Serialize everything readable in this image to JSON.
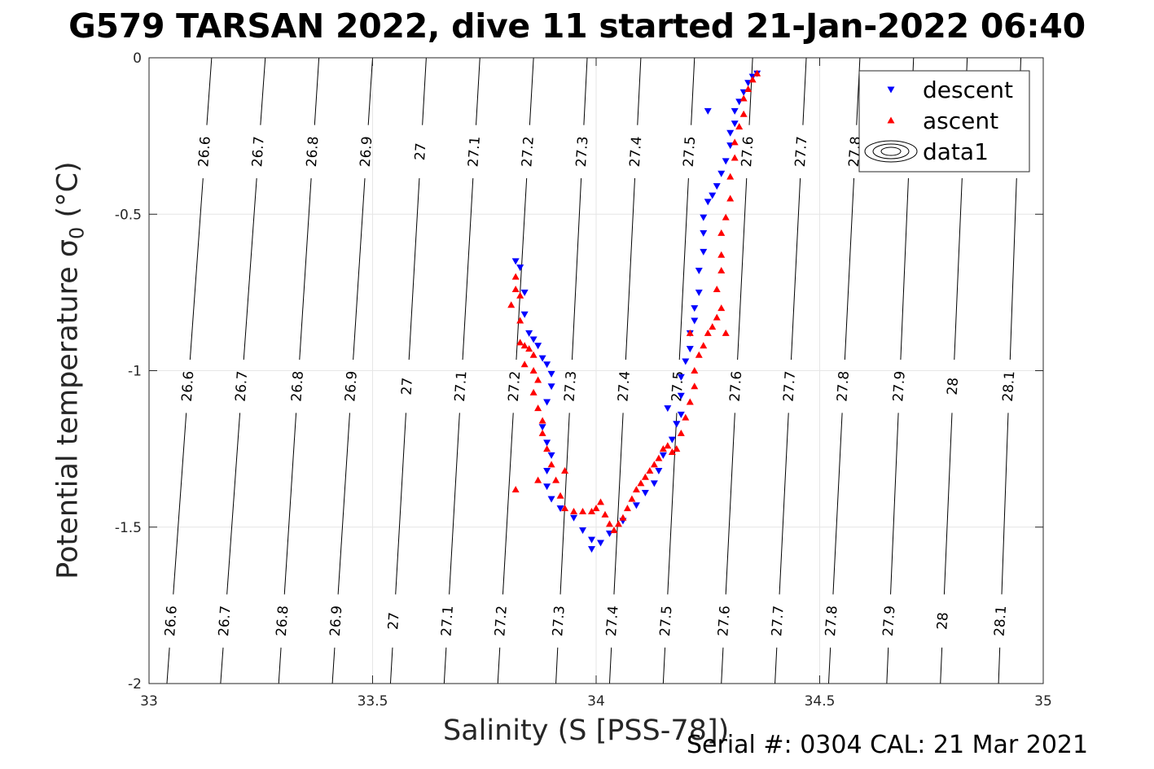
{
  "title": "G579 TARSAN 2022, dive 11 started 21-Jan-2022 06:40",
  "footer": "Serial #: 0304  CAL: 21 Mar 2021",
  "colors": {
    "descent": "#0000ff",
    "ascent": "#ff0000",
    "contours": "#000000",
    "grid": "#e6e6e6"
  },
  "chart_data": {
    "type": "scatter",
    "title": "G579 TARSAN 2022, dive 11 started 21-Jan-2022 06:40",
    "xlabel": "Salinity (S [PSS-78])",
    "ylabel_main": "Potential temperature σ",
    "ylabel_sub": "0",
    "ylabel_tail": " (°C)",
    "xlim": [
      33,
      35
    ],
    "ylim": [
      -2,
      0
    ],
    "xticks": [
      33,
      33.5,
      34,
      34.5,
      35
    ],
    "xtick_labels": [
      "33",
      "33.5",
      "34",
      "34.5",
      "35"
    ],
    "yticks": [
      0,
      -0.5,
      -1,
      -1.5,
      -2
    ],
    "ytick_labels": [
      "0",
      "-0.5",
      "-1",
      "-1.5",
      "-2"
    ],
    "grid": true,
    "legend_position": "top-right",
    "legend": [
      {
        "name": "descent",
        "marker": "triangle-down",
        "color": "#0000ff"
      },
      {
        "name": "ascent",
        "marker": "triangle-up",
        "color": "#ff0000"
      },
      {
        "name": "data1",
        "marker": "contour",
        "color": "#000000"
      }
    ],
    "contours": {
      "levels": [
        26.6,
        26.7,
        26.8,
        26.9,
        27,
        27.1,
        27.2,
        27.3,
        27.4,
        27.5,
        27.6,
        27.7,
        27.8,
        27.9,
        28,
        28.1
      ],
      "labels": [
        "26.6",
        "26.7",
        "26.8",
        "26.9",
        "27",
        "27.1",
        "27.2",
        "27.3",
        "27.4",
        "27.5",
        "27.6",
        "27.7",
        "27.8",
        "27.9",
        "28",
        "28.1"
      ],
      "s_at_theta_0": [
        33.14,
        33.26,
        33.38,
        33.5,
        33.62,
        33.74,
        33.86,
        33.98,
        34.1,
        34.22,
        34.35,
        34.47,
        34.59,
        34.71,
        34.83,
        34.95
      ],
      "s_at_theta_minus2": [
        33.04,
        33.16,
        33.29,
        33.41,
        33.54,
        33.66,
        33.78,
        33.91,
        34.03,
        34.15,
        34.28,
        34.4,
        34.52,
        34.65,
        34.77,
        34.9
      ],
      "labels_at_theta": [
        -0.3,
        -1.05,
        -1.8
      ]
    },
    "series": [
      {
        "name": "descent",
        "points": [
          [
            33.82,
            -0.65
          ],
          [
            33.83,
            -0.67
          ],
          [
            33.84,
            -0.75
          ],
          [
            33.84,
            -0.82
          ],
          [
            33.85,
            -0.88
          ],
          [
            33.86,
            -0.9
          ],
          [
            33.87,
            -0.92
          ],
          [
            33.88,
            -0.96
          ],
          [
            33.89,
            -0.98
          ],
          [
            33.9,
            -1.01
          ],
          [
            33.9,
            -1.05
          ],
          [
            33.89,
            -1.1
          ],
          [
            33.88,
            -1.18
          ],
          [
            33.89,
            -1.23
          ],
          [
            33.9,
            -1.27
          ],
          [
            33.89,
            -1.32
          ],
          [
            33.89,
            -1.37
          ],
          [
            33.9,
            -1.41
          ],
          [
            33.92,
            -1.44
          ],
          [
            33.95,
            -1.47
          ],
          [
            33.97,
            -1.51
          ],
          [
            33.99,
            -1.54
          ],
          [
            33.99,
            -1.57
          ],
          [
            34.01,
            -1.55
          ],
          [
            34.03,
            -1.52
          ],
          [
            34.06,
            -1.48
          ],
          [
            34.09,
            -1.43
          ],
          [
            34.11,
            -1.39
          ],
          [
            34.13,
            -1.36
          ],
          [
            34.14,
            -1.32
          ],
          [
            34.15,
            -1.27
          ],
          [
            34.17,
            -1.22
          ],
          [
            34.18,
            -1.17
          ],
          [
            34.19,
            -1.14
          ],
          [
            34.19,
            -1.08
          ],
          [
            34.19,
            -1.02
          ],
          [
            34.2,
            -0.97
          ],
          [
            34.21,
            -0.93
          ],
          [
            34.21,
            -0.88
          ],
          [
            34.22,
            -0.84
          ],
          [
            34.22,
            -0.8
          ],
          [
            34.23,
            -0.75
          ],
          [
            34.23,
            -0.68
          ],
          [
            34.24,
            -0.62
          ],
          [
            34.24,
            -0.56
          ],
          [
            34.24,
            -0.51
          ],
          [
            34.25,
            -0.46
          ],
          [
            34.26,
            -0.44
          ],
          [
            34.27,
            -0.41
          ],
          [
            34.28,
            -0.37
          ],
          [
            34.29,
            -0.33
          ],
          [
            34.3,
            -0.28
          ],
          [
            34.3,
            -0.24
          ],
          [
            34.31,
            -0.21
          ],
          [
            34.31,
            -0.17
          ],
          [
            34.32,
            -0.14
          ],
          [
            34.33,
            -0.11
          ],
          [
            34.34,
            -0.08
          ],
          [
            34.35,
            -0.06
          ],
          [
            34.36,
            -0.05
          ],
          [
            34.25,
            -0.17
          ],
          [
            34.18,
            -1.17
          ],
          [
            34.16,
            -1.12
          ]
        ]
      },
      {
        "name": "ascent",
        "points": [
          [
            33.81,
            -0.79
          ],
          [
            33.82,
            -0.74
          ],
          [
            33.82,
            -0.7
          ],
          [
            33.83,
            -0.76
          ],
          [
            33.83,
            -0.84
          ],
          [
            33.83,
            -0.91
          ],
          [
            33.84,
            -0.92
          ],
          [
            33.85,
            -0.93
          ],
          [
            33.86,
            -0.95
          ],
          [
            33.86,
            -1.0
          ],
          [
            33.87,
            -1.03
          ],
          [
            33.86,
            -1.07
          ],
          [
            33.87,
            -1.12
          ],
          [
            33.88,
            -1.16
          ],
          [
            33.88,
            -1.2
          ],
          [
            33.89,
            -1.25
          ],
          [
            33.9,
            -1.3
          ],
          [
            33.91,
            -1.35
          ],
          [
            33.92,
            -1.4
          ],
          [
            33.93,
            -1.44
          ],
          [
            33.95,
            -1.45
          ],
          [
            33.97,
            -1.45
          ],
          [
            33.99,
            -1.45
          ],
          [
            34.0,
            -1.44
          ],
          [
            34.01,
            -1.42
          ],
          [
            34.02,
            -1.46
          ],
          [
            34.03,
            -1.49
          ],
          [
            34.04,
            -1.51
          ],
          [
            34.05,
            -1.49
          ],
          [
            34.06,
            -1.47
          ],
          [
            34.07,
            -1.44
          ],
          [
            34.08,
            -1.41
          ],
          [
            34.09,
            -1.38
          ],
          [
            34.1,
            -1.36
          ],
          [
            34.11,
            -1.34
          ],
          [
            34.12,
            -1.32
          ],
          [
            34.13,
            -1.3
          ],
          [
            34.14,
            -1.28
          ],
          [
            34.15,
            -1.25
          ],
          [
            34.16,
            -1.24
          ],
          [
            34.17,
            -1.26
          ],
          [
            34.18,
            -1.25
          ],
          [
            34.19,
            -1.2
          ],
          [
            34.2,
            -1.15
          ],
          [
            34.21,
            -1.1
          ],
          [
            34.22,
            -1.05
          ],
          [
            34.22,
            -1.0
          ],
          [
            34.23,
            -0.95
          ],
          [
            34.24,
            -0.92
          ],
          [
            34.25,
            -0.88
          ],
          [
            34.26,
            -0.86
          ],
          [
            34.27,
            -0.83
          ],
          [
            34.28,
            -0.8
          ],
          [
            34.27,
            -0.74
          ],
          [
            34.28,
            -0.68
          ],
          [
            34.28,
            -0.63
          ],
          [
            34.28,
            -0.56
          ],
          [
            34.29,
            -0.51
          ],
          [
            34.3,
            -0.45
          ],
          [
            34.3,
            -0.38
          ],
          [
            34.31,
            -0.32
          ],
          [
            34.31,
            -0.27
          ],
          [
            34.32,
            -0.22
          ],
          [
            34.33,
            -0.18
          ],
          [
            34.33,
            -0.13
          ],
          [
            34.34,
            -0.1
          ],
          [
            34.35,
            -0.07
          ],
          [
            34.36,
            -0.05
          ],
          [
            33.84,
            -0.98
          ],
          [
            33.87,
            -1.35
          ],
          [
            33.93,
            -1.32
          ],
          [
            33.82,
            -1.38
          ],
          [
            34.29,
            -0.88
          ],
          [
            34.21,
            -0.88
          ]
        ]
      }
    ]
  }
}
